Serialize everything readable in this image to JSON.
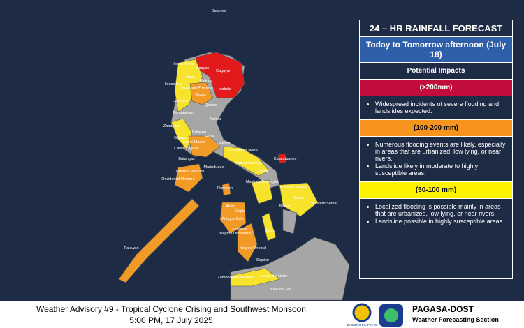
{
  "map": {
    "labels": [
      "Batanes",
      "Ilocos Norte",
      "Apayao",
      "Cagayan",
      "Abra",
      "Kalinga",
      "Ilocos Sur",
      "Mountain Province",
      "Isabela",
      "Ifugao",
      "La Union",
      "Quirino",
      "Pangasinan",
      "Aurora",
      "Zambales",
      "Bulacan",
      "Bataan",
      "Rizal",
      "Metro Manila",
      "Quezon",
      "Cavite Laguna",
      "Camarines Norte",
      "Catanduanes",
      "Batangas",
      "Camarines Sur",
      "Marinduque",
      "Oriental Mindoro",
      "Albay",
      "Occidental Mindoro",
      "Masbate Sorsogon",
      "Northern Samar",
      "Romblon",
      "Samar",
      "Eastern Samar",
      "Biliran",
      "Aklan",
      "Capiz",
      "Antique Iloilo",
      "Guimaras",
      "Cebu",
      "Negros Occidental",
      "Negros Oriental",
      "Palawan",
      "Siquijor",
      "Zamboanga del Norte",
      "Lanao del Norte",
      "Lanao del Sur"
    ]
  },
  "legend": {
    "title": "24 – HR RAINFALL FORECAST",
    "period": "Today to Tomorrow afternoon (July 18)",
    "impacts_heading": "Potential Impacts",
    "levels": [
      {
        "range": "(>200mm)",
        "impacts": [
          "Widespread incidents of severe flooding and landslides expected."
        ]
      },
      {
        "range": "(100-200 mm)",
        "impacts": [
          "Numerous flooding events are likely, especially in areas that are urbanized, low lying, or near rivers.",
          "Landslide likely in moderate to highly susceptible areas."
        ]
      },
      {
        "range": "(50-100 mm)",
        "impacts": [
          "Localized flooding is possible mainly in areas that are urbanized, low lying, or near rivers.",
          "Landslide possible in highly susceptible areas."
        ]
      }
    ]
  },
  "footer": {
    "advisory": "Weather Advisory #9 - Tropical Cyclone Crising and Southwest Monsoon",
    "datetime": "5:00 PM, 17 July 2025",
    "logo_caption": "BAGONG PILIPINAS",
    "agency": "PAGASA-DOST",
    "section": "Weather Forecasting Section"
  }
}
